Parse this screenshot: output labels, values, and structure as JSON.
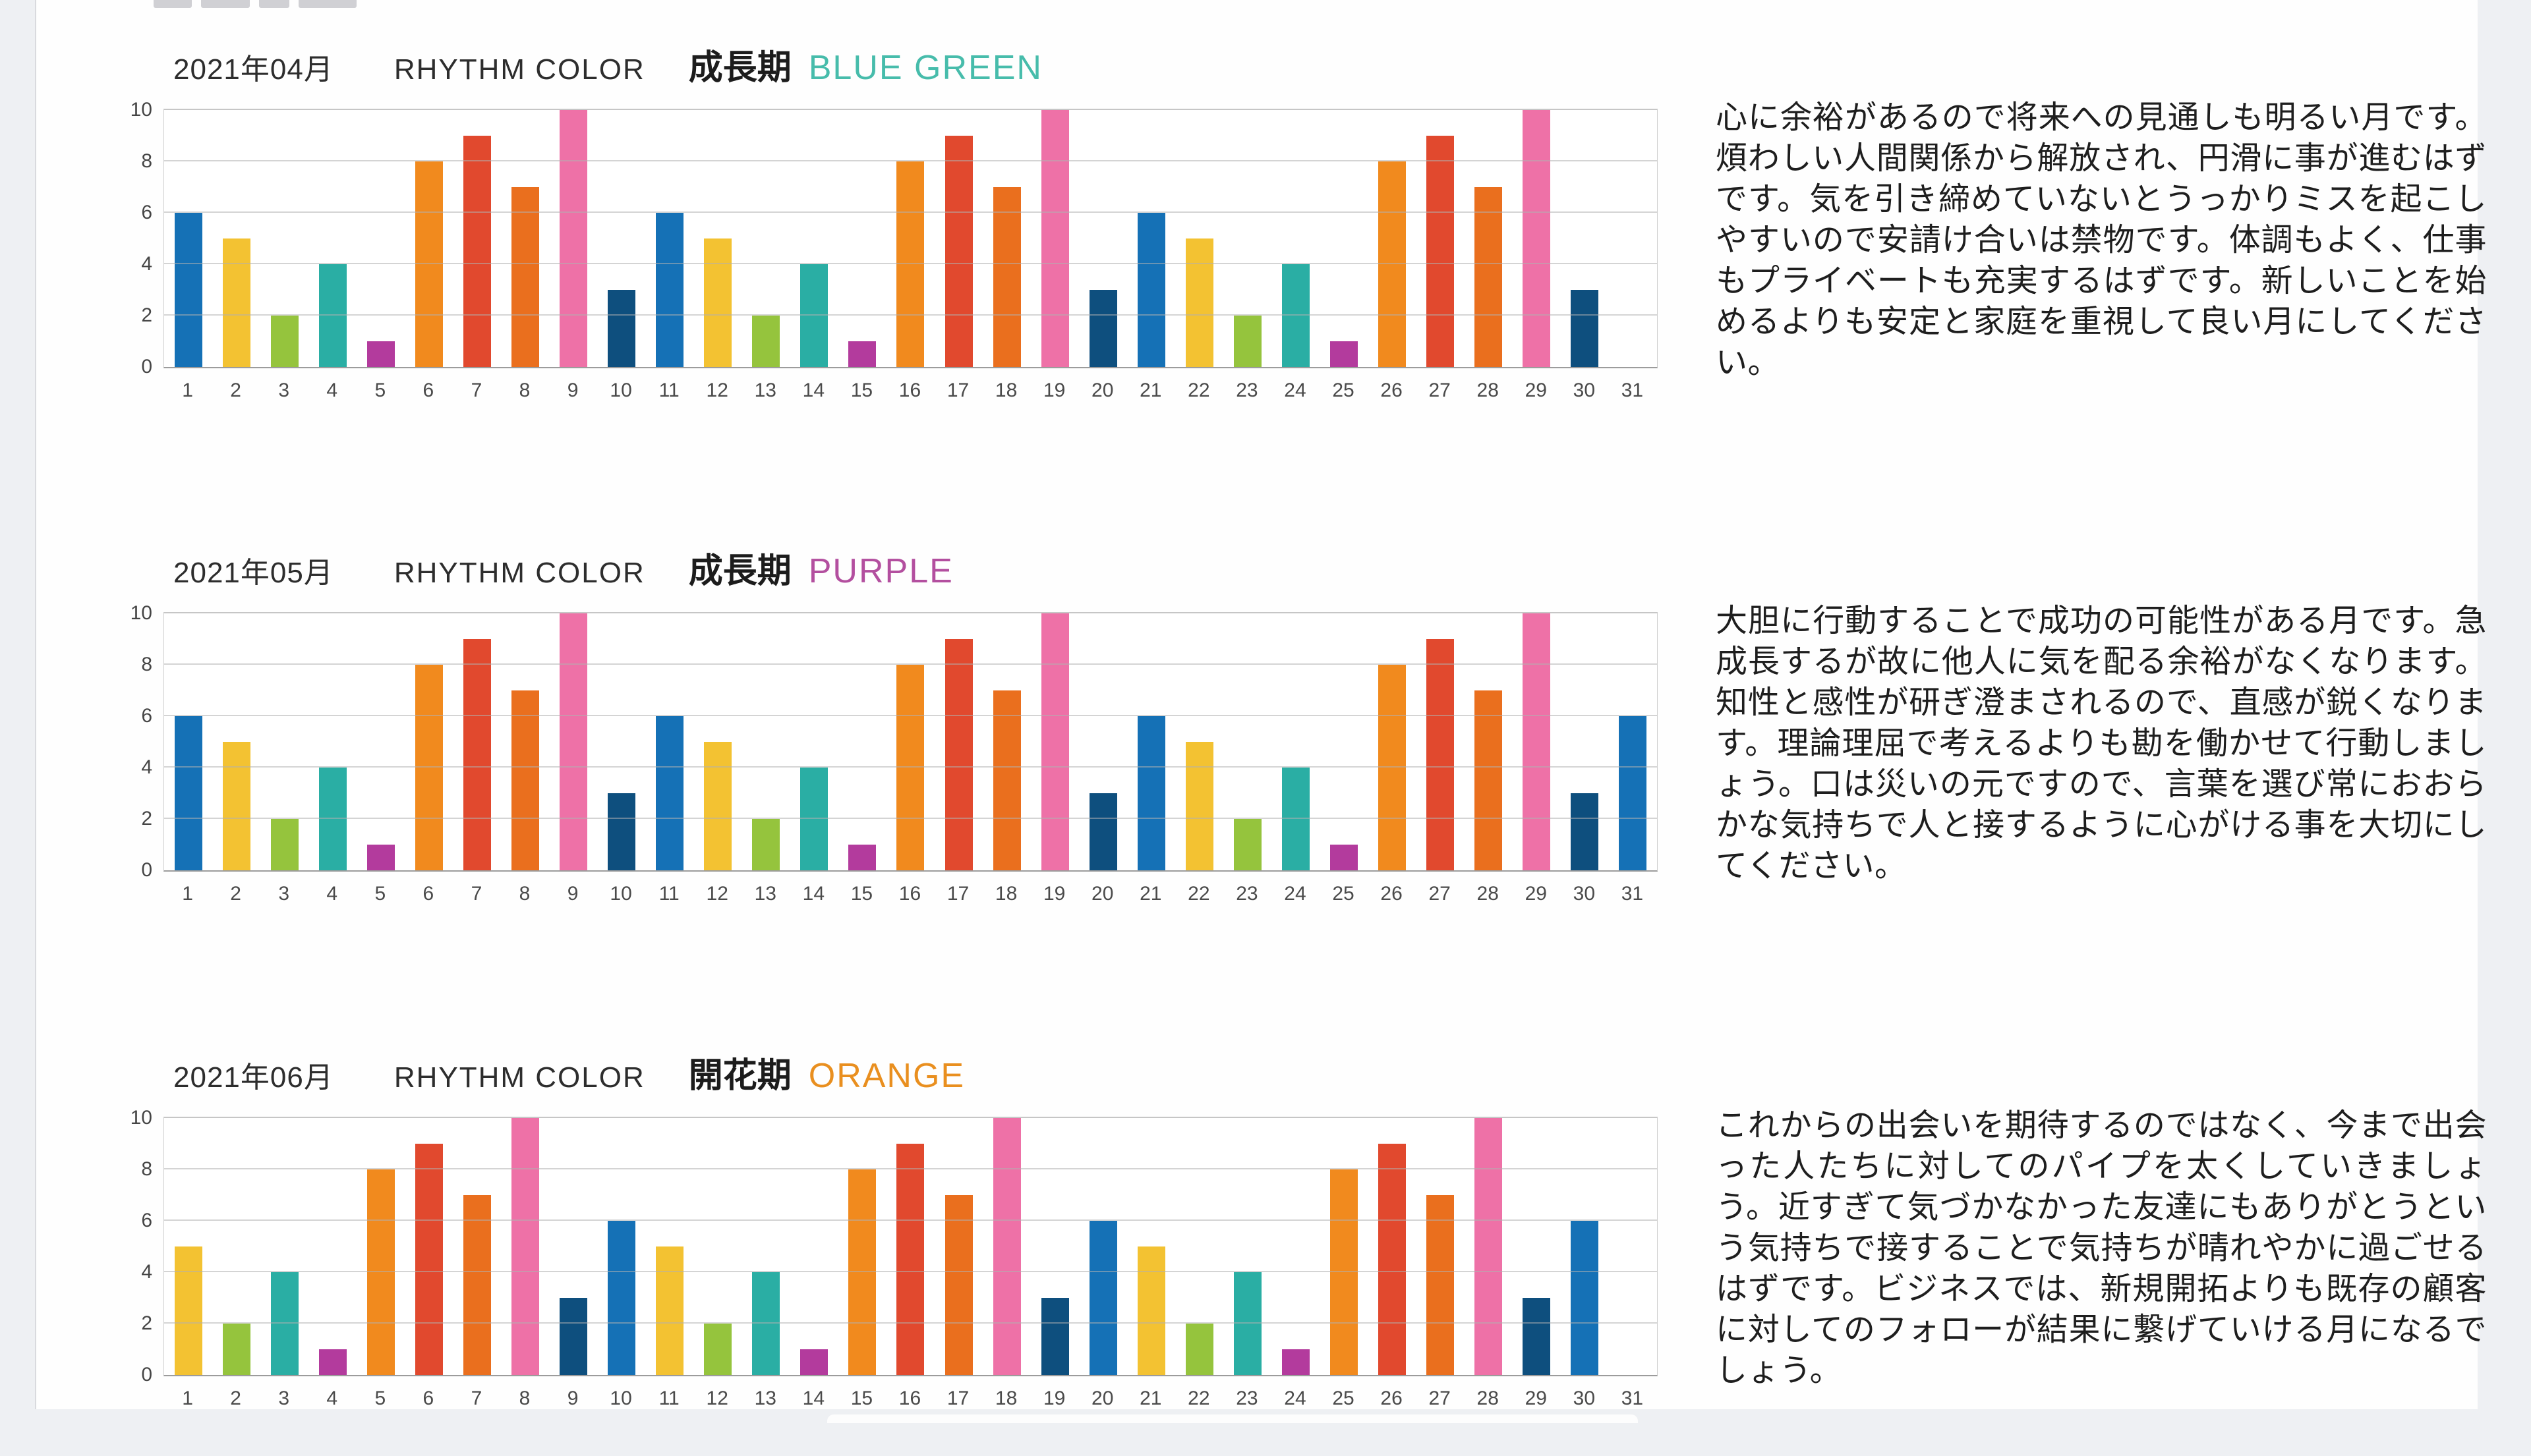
{
  "page": {
    "months": [
      {
        "date_label": "2021年04月",
        "rhythm_label": "RHYTHM COLOR",
        "phase_label": "成長期",
        "color_name": "BLUE GREEN",
        "color_hex": "#47bcab",
        "description": "心に余裕があるので将来への見通しも明るい月です。煩わしい人間関係から解放され、円滑に事が進むはずです。気を引き締めていないとうっかりミスを起こしやすいので安請け合いは禁物です。体調もよく、仕事もプライベートも充実するはずです。新しいことを始めるよりも安定と家庭を重視して良い月にしてください。"
      },
      {
        "date_label": "2021年05月",
        "rhythm_label": "RHYTHM COLOR",
        "phase_label": "成長期",
        "color_name": "PURPLE",
        "color_hex": "#b34f9f",
        "description": "大胆に行動することで成功の可能性がある月です。急成長するが故に他人に気を配る余裕がなくなります。知性と感性が研ぎ澄まされるので、直感が鋭くなります。理論理屈で考えるよりも勘を働かせて行動しましょう。口は災いの元ですので、言葉を選び常におおらかな気持ちで人と接するように心がける事を大切にしてください。"
      },
      {
        "date_label": "2021年06月",
        "rhythm_label": "RHYTHM COLOR",
        "phase_label": "開花期",
        "color_name": "ORANGE",
        "color_hex": "#e98f1f",
        "description": "これからの出会いを期待するのではなく、今まで出会った人たちに対してのパイプを太くしていきましょう。近すぎて気づかなかった友達にもありがとうという気持ちで接することで気持ちが晴れやかに過ごせるはずです。ビジネスでは、新規開拓よりも既存の顧客に対してのフォローが結果に繋げていける月になるでしょう。"
      }
    ]
  },
  "chart_data": [
    {
      "type": "bar",
      "title": "2021年04月 RHYTHM COLOR 成長期 BLUE GREEN",
      "categories": [
        1,
        2,
        3,
        4,
        5,
        6,
        7,
        8,
        9,
        10,
        11,
        12,
        13,
        14,
        15,
        16,
        17,
        18,
        19,
        20,
        21,
        22,
        23,
        24,
        25,
        26,
        27,
        28,
        29,
        30,
        31
      ],
      "values": [
        6,
        5,
        2,
        4,
        1,
        8,
        9,
        7,
        10,
        3,
        6,
        5,
        2,
        4,
        1,
        8,
        9,
        7,
        10,
        3,
        6,
        5,
        2,
        4,
        1,
        8,
        9,
        7,
        10,
        3,
        null
      ],
      "bar_colors": [
        "#1571b6",
        "#f3c232",
        "#95c43d",
        "#2aaea4",
        "#b33b9d",
        "#f18a1e",
        "#e1492e",
        "#ea6f1e",
        "#ee71a7",
        "#0e4f7e",
        "#1571b6",
        "#f3c232",
        "#95c43d",
        "#2aaea4",
        "#b33b9d",
        "#f18a1e",
        "#e1492e",
        "#ea6f1e",
        "#ee71a7",
        "#0e4f7e",
        "#1571b6",
        "#f3c232",
        "#95c43d",
        "#2aaea4",
        "#b33b9d",
        "#f18a1e",
        "#e1492e",
        "#ea6f1e",
        "#ee71a7",
        "#0e4f7e",
        null
      ],
      "xlabel": "",
      "ylabel": "",
      "ylim": [
        0,
        10
      ],
      "yticks": [
        0,
        2,
        4,
        6,
        8,
        10
      ],
      "grid": true,
      "legend": false
    },
    {
      "type": "bar",
      "title": "2021年05月 RHYTHM COLOR 成長期 PURPLE",
      "categories": [
        1,
        2,
        3,
        4,
        5,
        6,
        7,
        8,
        9,
        10,
        11,
        12,
        13,
        14,
        15,
        16,
        17,
        18,
        19,
        20,
        21,
        22,
        23,
        24,
        25,
        26,
        27,
        28,
        29,
        30,
        31
      ],
      "values": [
        6,
        5,
        2,
        4,
        1,
        8,
        9,
        7,
        10,
        3,
        6,
        5,
        2,
        4,
        1,
        8,
        9,
        7,
        10,
        3,
        6,
        5,
        2,
        4,
        1,
        8,
        9,
        7,
        10,
        3,
        6
      ],
      "bar_colors": [
        "#1571b6",
        "#f3c232",
        "#95c43d",
        "#2aaea4",
        "#b33b9d",
        "#f18a1e",
        "#e1492e",
        "#ea6f1e",
        "#ee71a7",
        "#0e4f7e",
        "#1571b6",
        "#f3c232",
        "#95c43d",
        "#2aaea4",
        "#b33b9d",
        "#f18a1e",
        "#e1492e",
        "#ea6f1e",
        "#ee71a7",
        "#0e4f7e",
        "#1571b6",
        "#f3c232",
        "#95c43d",
        "#2aaea4",
        "#b33b9d",
        "#f18a1e",
        "#e1492e",
        "#ea6f1e",
        "#ee71a7",
        "#0e4f7e",
        "#1571b6"
      ],
      "xlabel": "",
      "ylabel": "",
      "ylim": [
        0,
        10
      ],
      "yticks": [
        0,
        2,
        4,
        6,
        8,
        10
      ],
      "grid": true,
      "legend": false
    },
    {
      "type": "bar",
      "title": "2021年06月 RHYTHM COLOR 開花期 ORANGE",
      "categories": [
        1,
        2,
        3,
        4,
        5,
        6,
        7,
        8,
        9,
        10,
        11,
        12,
        13,
        14,
        15,
        16,
        17,
        18,
        19,
        20,
        21,
        22,
        23,
        24,
        25,
        26,
        27,
        28,
        29,
        30,
        31
      ],
      "values": [
        5,
        2,
        4,
        1,
        8,
        9,
        7,
        10,
        3,
        6,
        5,
        2,
        4,
        1,
        8,
        9,
        7,
        10,
        3,
        6,
        5,
        2,
        4,
        1,
        8,
        9,
        7,
        10,
        3,
        6,
        null
      ],
      "bar_colors": [
        "#f3c232",
        "#95c43d",
        "#2aaea4",
        "#b33b9d",
        "#f18a1e",
        "#e1492e",
        "#ea6f1e",
        "#ee71a7",
        "#0e4f7e",
        "#1571b6",
        "#f3c232",
        "#95c43d",
        "#2aaea4",
        "#b33b9d",
        "#f18a1e",
        "#e1492e",
        "#ea6f1e",
        "#ee71a7",
        "#0e4f7e",
        "#1571b6",
        "#f3c232",
        "#95c43d",
        "#2aaea4",
        "#b33b9d",
        "#f18a1e",
        "#e1492e",
        "#ea6f1e",
        "#ee71a7",
        "#0e4f7e",
        "#1571b6",
        null
      ],
      "xlabel": "",
      "ylabel": "",
      "ylim": [
        0,
        10
      ],
      "yticks": [
        0,
        2,
        4,
        6,
        8,
        10
      ],
      "grid": true,
      "legend": false
    }
  ]
}
